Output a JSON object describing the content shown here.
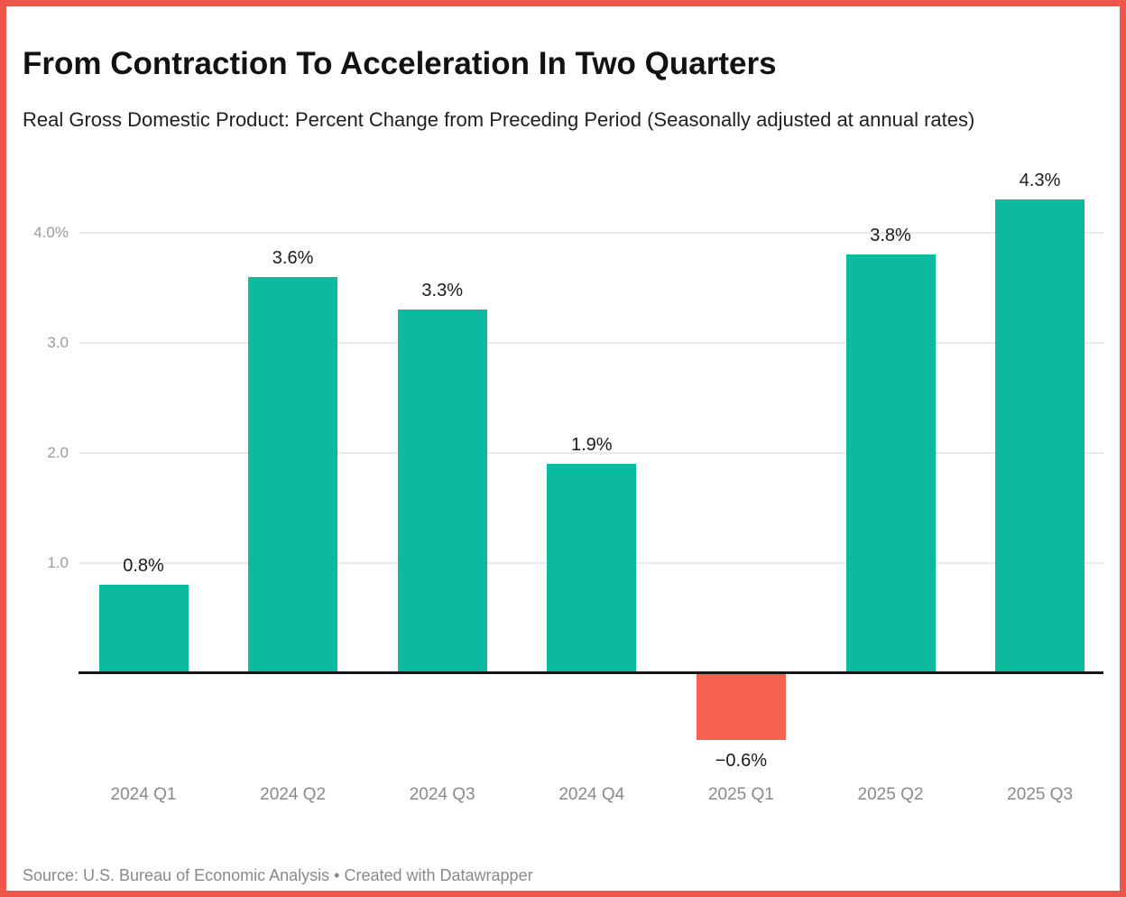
{
  "frame": {
    "background": "#ffffff",
    "border_color": "#ee5649"
  },
  "header": {
    "title": "From Contraction To Acceleration In Two Quarters",
    "subtitle": "Real Gross Domestic Product: Percent Change from Preceding Period (Seasonally adjusted at annual rates)"
  },
  "chart_data": {
    "type": "bar",
    "title": "From Contraction To Acceleration In Two Quarters",
    "subtitle": "Real Gross Domestic Product: Percent Change from Preceding Period (Seasonally adjusted at annual rates)",
    "categories": [
      "2024 Q1",
      "2024 Q2",
      "2024 Q3",
      "2024 Q4",
      "2025 Q1",
      "2025 Q2",
      "2025 Q3"
    ],
    "values": [
      0.8,
      3.6,
      3.3,
      1.9,
      -0.6,
      3.8,
      4.3
    ],
    "value_labels": [
      "0.8%",
      "3.6%",
      "3.3%",
      "1.9%",
      "−0.6%",
      "3.8%",
      "4.3%"
    ],
    "xlabel": "",
    "ylabel": "",
    "ylim": [
      -1.0,
      4.6
    ],
    "y_ticks": [
      {
        "value": 1.0,
        "label": "1.0"
      },
      {
        "value": 2.0,
        "label": "2.0"
      },
      {
        "value": 3.0,
        "label": "3.0"
      },
      {
        "value": 4.0,
        "label": "4.0%"
      }
    ],
    "grid": true,
    "legend": false,
    "positive_color": "#0abb9f",
    "negative_color": "#f4624f",
    "axis_color": "#161616",
    "gridline_color": "#e9e9e9"
  },
  "footer": {
    "text": "Source: U.S. Bureau of Economic Analysis • Created with Datawrapper"
  }
}
